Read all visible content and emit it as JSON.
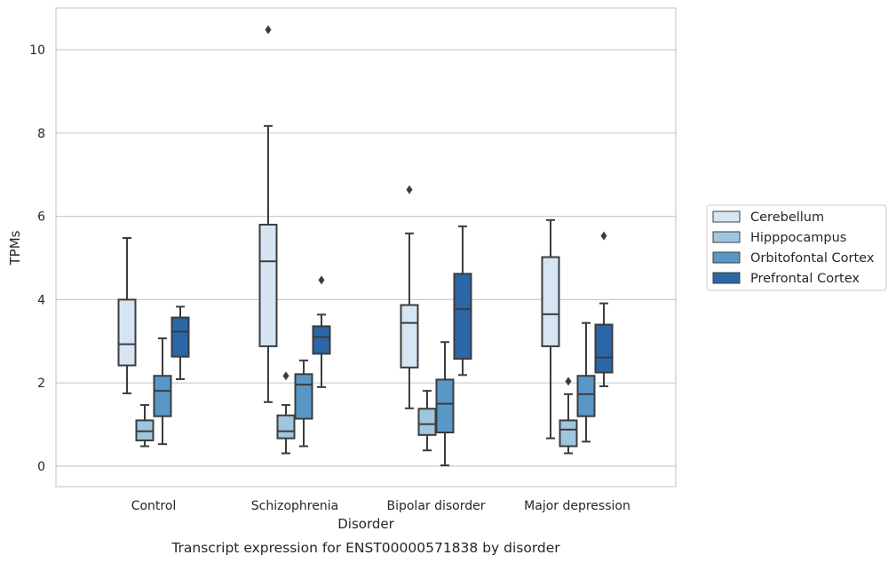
{
  "caption": "Transcript expression for ENST00000571838 by disorder",
  "chart_data": {
    "type": "boxplot",
    "xlabel": "Disorder",
    "ylabel": "TPMs",
    "ylim": [
      -0.5,
      11
    ],
    "yticks": [
      0,
      2,
      4,
      6,
      8,
      10
    ],
    "grid": "horizontal",
    "legend_position": "right",
    "categories": [
      "Control",
      "Schizophrenia",
      "Bipolar disorder",
      "Major depression"
    ],
    "series": [
      {
        "name": "Cerebellum",
        "color": "#d6e5f4",
        "boxes": [
          {
            "whislo": 1.75,
            "q1": 2.42,
            "med": 2.93,
            "q3": 4.0,
            "whishi": 5.48,
            "fliers": []
          },
          {
            "whislo": 1.54,
            "q1": 2.88,
            "med": 4.92,
            "q3": 5.8,
            "whishi": 8.17,
            "fliers": [
              10.48
            ]
          },
          {
            "whislo": 1.39,
            "q1": 2.37,
            "med": 3.44,
            "q3": 3.87,
            "whishi": 5.59,
            "fliers": [
              6.64
            ]
          },
          {
            "whislo": 0.67,
            "q1": 2.88,
            "med": 3.65,
            "q3": 5.02,
            "whishi": 5.91,
            "fliers": []
          }
        ]
      },
      {
        "name": "Hipppocampus",
        "color": "#9fc6df",
        "boxes": [
          {
            "whislo": 0.48,
            "q1": 0.62,
            "med": 0.84,
            "q3": 1.1,
            "whishi": 1.47,
            "fliers": []
          },
          {
            "whislo": 0.31,
            "q1": 0.67,
            "med": 0.84,
            "q3": 1.22,
            "whishi": 1.47,
            "fliers": [
              2.17
            ]
          },
          {
            "whislo": 0.38,
            "q1": 0.75,
            "med": 1.01,
            "q3": 1.38,
            "whishi": 1.81,
            "fliers": []
          },
          {
            "whislo": 0.31,
            "q1": 0.48,
            "med": 0.88,
            "q3": 1.1,
            "whishi": 1.73,
            "fliers": [
              2.04
            ]
          }
        ]
      },
      {
        "name": "Orbitofontal Cortex",
        "color": "#5897c6",
        "boxes": [
          {
            "whislo": 0.53,
            "q1": 1.2,
            "med": 1.81,
            "q3": 2.17,
            "whishi": 3.07,
            "fliers": []
          },
          {
            "whislo": 0.48,
            "q1": 1.14,
            "med": 1.96,
            "q3": 2.21,
            "whishi": 2.54,
            "fliers": []
          },
          {
            "whislo": 0.02,
            "q1": 0.81,
            "med": 1.5,
            "q3": 2.08,
            "whishi": 2.98,
            "fliers": []
          },
          {
            "whislo": 0.59,
            "q1": 1.2,
            "med": 1.73,
            "q3": 2.17,
            "whishi": 3.44,
            "fliers": []
          }
        ]
      },
      {
        "name": "Prefrontal Cortex",
        "color": "#2b66a7",
        "boxes": [
          {
            "whislo": 2.09,
            "q1": 2.63,
            "med": 3.23,
            "q3": 3.57,
            "whishi": 3.83,
            "fliers": []
          },
          {
            "whislo": 1.9,
            "q1": 2.7,
            "med": 3.1,
            "q3": 3.36,
            "whishi": 3.64,
            "fliers": [
              4.47
            ]
          },
          {
            "whislo": 2.19,
            "q1": 2.58,
            "med": 3.77,
            "q3": 4.62,
            "whishi": 5.76,
            "fliers": []
          },
          {
            "whislo": 1.92,
            "q1": 2.25,
            "med": 2.61,
            "q3": 3.4,
            "whishi": 3.91,
            "fliers": [
              5.53
            ]
          }
        ]
      }
    ]
  }
}
